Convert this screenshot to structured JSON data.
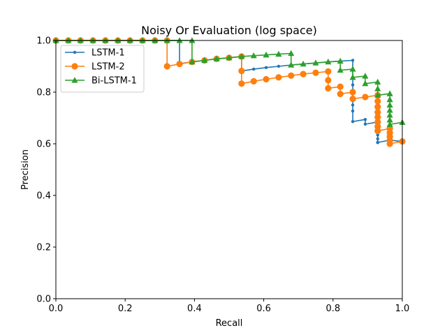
{
  "chart_data": {
    "type": "line",
    "title": "Noisy Or Evaluation (log space)",
    "xlabel": "Recall",
    "ylabel": "Precision",
    "xlim": [
      0,
      1
    ],
    "ylim": [
      0,
      1
    ],
    "xticks": [
      "0.0",
      "0.2",
      "0.4",
      "0.6",
      "0.8",
      "1.0"
    ],
    "yticks": [
      "0.0",
      "0.2",
      "0.4",
      "0.6",
      "0.8",
      "1.0"
    ],
    "grid": false,
    "legend_position": "upper-left",
    "series": [
      {
        "name": "LSTM-1",
        "color": "#1f77b4",
        "marker": "small-dot",
        "x": [
          0.0,
          0.036,
          0.071,
          0.107,
          0.143,
          0.179,
          0.214,
          0.25,
          0.286,
          0.321,
          0.357,
          0.357,
          0.393,
          0.429,
          0.464,
          0.5,
          0.536,
          0.536,
          0.571,
          0.607,
          0.643,
          0.679,
          0.714,
          0.75,
          0.786,
          0.821,
          0.857,
          0.857,
          0.857,
          0.857,
          0.857,
          0.857,
          0.857,
          0.893,
          0.893,
          0.929,
          0.929,
          0.929,
          0.929,
          0.929,
          0.929,
          0.929,
          0.929,
          0.929,
          0.964,
          0.964,
          0.964,
          1.0
        ],
        "y": [
          1.0,
          1.0,
          1.0,
          1.0,
          1.0,
          1.0,
          1.0,
          1.0,
          1.0,
          1.0,
          1.0,
          0.91,
          0.917,
          0.923,
          0.929,
          0.933,
          0.938,
          0.882,
          0.889,
          0.895,
          0.9,
          0.905,
          0.909,
          0.913,
          0.917,
          0.92,
          0.923,
          0.828,
          0.8,
          0.774,
          0.75,
          0.727,
          0.686,
          0.694,
          0.676,
          0.684,
          0.667,
          0.65,
          0.634,
          0.619,
          0.605,
          0.605,
          0.605,
          0.605,
          0.614,
          0.614,
          0.614,
          0.609
        ]
      },
      {
        "name": "LSTM-2",
        "color": "#ff7f0e",
        "marker": "circle",
        "x": [
          0.0,
          0.036,
          0.071,
          0.107,
          0.143,
          0.179,
          0.214,
          0.25,
          0.286,
          0.321,
          0.321,
          0.357,
          0.393,
          0.429,
          0.464,
          0.5,
          0.536,
          0.536,
          0.536,
          0.571,
          0.607,
          0.643,
          0.679,
          0.714,
          0.75,
          0.786,
          0.786,
          0.786,
          0.821,
          0.821,
          0.857,
          0.857,
          0.893,
          0.929,
          0.929,
          0.929,
          0.929,
          0.929,
          0.929,
          0.929,
          0.929,
          0.929,
          0.964,
          0.964,
          0.964,
          0.964,
          0.964,
          1.0
        ],
        "y": [
          1.0,
          1.0,
          1.0,
          1.0,
          1.0,
          1.0,
          1.0,
          1.0,
          1.0,
          1.0,
          0.9,
          0.909,
          0.917,
          0.923,
          0.929,
          0.933,
          0.938,
          0.882,
          0.833,
          0.842,
          0.85,
          0.857,
          0.864,
          0.87,
          0.875,
          0.88,
          0.846,
          0.815,
          0.821,
          0.793,
          0.8,
          0.774,
          0.781,
          0.788,
          0.765,
          0.743,
          0.722,
          0.703,
          0.684,
          0.667,
          0.65,
          0.65,
          0.659,
          0.643,
          0.628,
          0.614,
          0.6,
          0.609
        ]
      },
      {
        "name": "Bi-LSTM-1",
        "color": "#2ca02c",
        "marker": "triangle-up",
        "x": [
          0.0,
          0.036,
          0.071,
          0.107,
          0.143,
          0.179,
          0.214,
          0.25,
          0.286,
          0.321,
          0.357,
          0.393,
          0.393,
          0.429,
          0.464,
          0.5,
          0.536,
          0.571,
          0.607,
          0.643,
          0.679,
          0.679,
          0.714,
          0.75,
          0.786,
          0.821,
          0.821,
          0.857,
          0.857,
          0.893,
          0.893,
          0.929,
          0.929,
          0.929,
          0.964,
          0.964,
          0.964,
          0.964,
          0.964,
          0.964,
          0.964,
          1.0
        ],
        "y": [
          1.0,
          1.0,
          1.0,
          1.0,
          1.0,
          1.0,
          1.0,
          1.0,
          1.0,
          1.0,
          1.0,
          1.0,
          0.917,
          0.923,
          0.929,
          0.933,
          0.938,
          0.941,
          0.944,
          0.947,
          0.95,
          0.905,
          0.909,
          0.913,
          0.917,
          0.92,
          0.885,
          0.889,
          0.857,
          0.862,
          0.833,
          0.839,
          0.813,
          0.788,
          0.794,
          0.771,
          0.75,
          0.73,
          0.711,
          0.692,
          0.675,
          0.683
        ]
      }
    ]
  }
}
